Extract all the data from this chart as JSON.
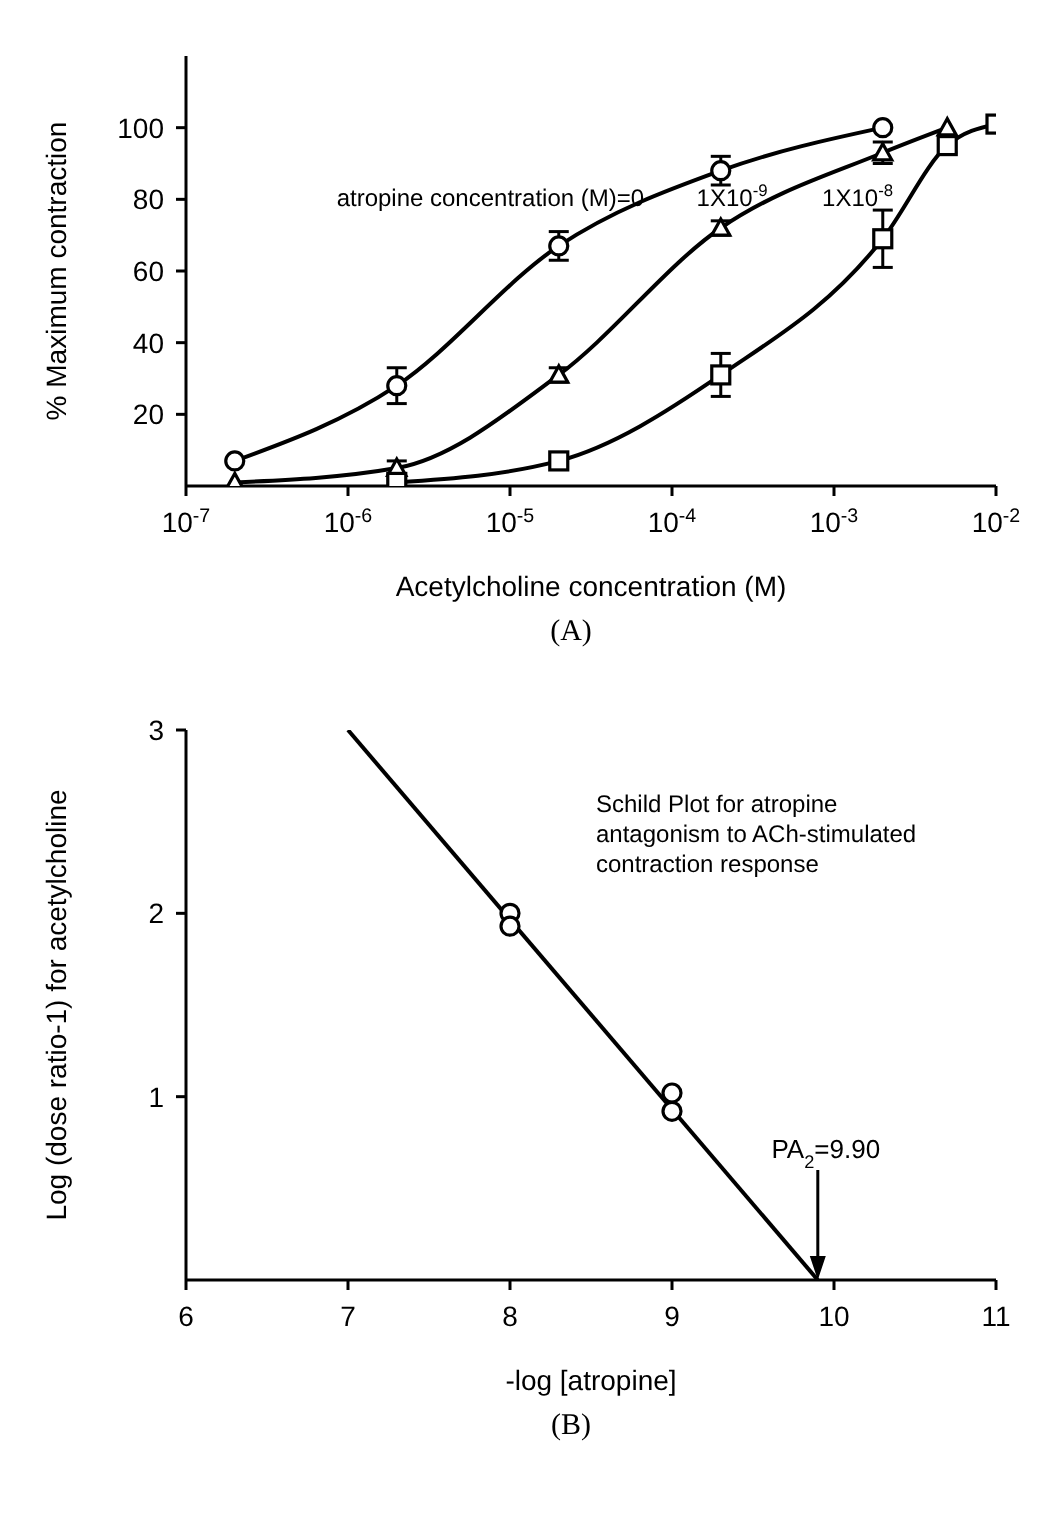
{
  "chart_data": [
    {
      "type": "line",
      "xlabel": "Acetylcholine concentration (M)",
      "ylabel": "% Maximum contraction",
      "log": "x",
      "xlim": [
        1e-07,
        0.01
      ],
      "xticks": [
        {
          "value": 1e-07,
          "label": "10$^{-7}$"
        },
        {
          "value": 1e-06,
          "label": "10$^{-6}$"
        },
        {
          "value": 1e-05,
          "label": "10$^{-5}$"
        },
        {
          "value": 0.0001,
          "label": "10$^{-4}$"
        },
        {
          "value": 0.001,
          "label": "10$^{-3}$"
        },
        {
          "value": 0.01,
          "label": "10$^{-2}$"
        }
      ],
      "ylim": [
        0,
        120
      ],
      "yticks": [
        20,
        40,
        60,
        80,
        100
      ],
      "grid": false,
      "legend": false,
      "series": [
        {
          "name": "atropine concentration (M)=0",
          "color": "#000000",
          "marker": "circle",
          "x": [
            2e-07,
            2e-06,
            2e-05,
            0.0002,
            0.002
          ],
          "values": [
            7,
            28,
            67,
            88,
            100
          ],
          "errors": [
            null,
            5,
            4,
            4,
            null
          ]
        },
        {
          "name": "1X10$^{-9}$",
          "color": "#000000",
          "marker": "triangle",
          "x": [
            2e-07,
            2e-06,
            2e-05,
            0.0002,
            0.002,
            0.005
          ],
          "values": [
            1,
            5,
            31,
            72,
            93,
            100
          ],
          "errors": [
            null,
            2,
            2,
            2,
            3,
            null
          ]
        },
        {
          "name": "1X10$^{-8}$",
          "color": "#000000",
          "marker": "square",
          "x": [
            2e-06,
            2e-05,
            0.0002,
            0.002,
            0.005,
            0.01
          ],
          "values": [
            1,
            7,
            31,
            69,
            95,
            101
          ],
          "errors": [
            null,
            null,
            6,
            8,
            2,
            null
          ]
        }
      ],
      "annotations": [
        "(A)"
      ]
    },
    {
      "type": "line",
      "xlabel": "-log [atropine]",
      "ylabel": "Log (dose ratio-1) for acetylcholine",
      "xlim": [
        6,
        11
      ],
      "xticks": [
        6,
        7,
        8,
        9,
        10,
        11
      ],
      "ylim": [
        0,
        3
      ],
      "yticks": [
        1,
        2,
        3
      ],
      "grid": false,
      "legend": false,
      "series": [
        {
          "color": "#000000",
          "marker": "none",
          "x": [
            7,
            9.9
          ],
          "values": [
            3,
            0
          ]
        },
        {
          "type": "scatter",
          "color": "#000000",
          "marker": "circle",
          "x": [
            8,
            8,
            9,
            9
          ],
          "values": [
            2.0,
            1.93,
            1.02,
            0.92
          ]
        }
      ],
      "ref_lines": [
        {
          "axis": "x",
          "value": 9.9,
          "label": "PA$_{2}$=9.90"
        }
      ],
      "annotations": [
        "Schild Plot for atropine\nantagonism to ACh-stimulated\ncontraction response",
        "(B)"
      ]
    }
  ]
}
